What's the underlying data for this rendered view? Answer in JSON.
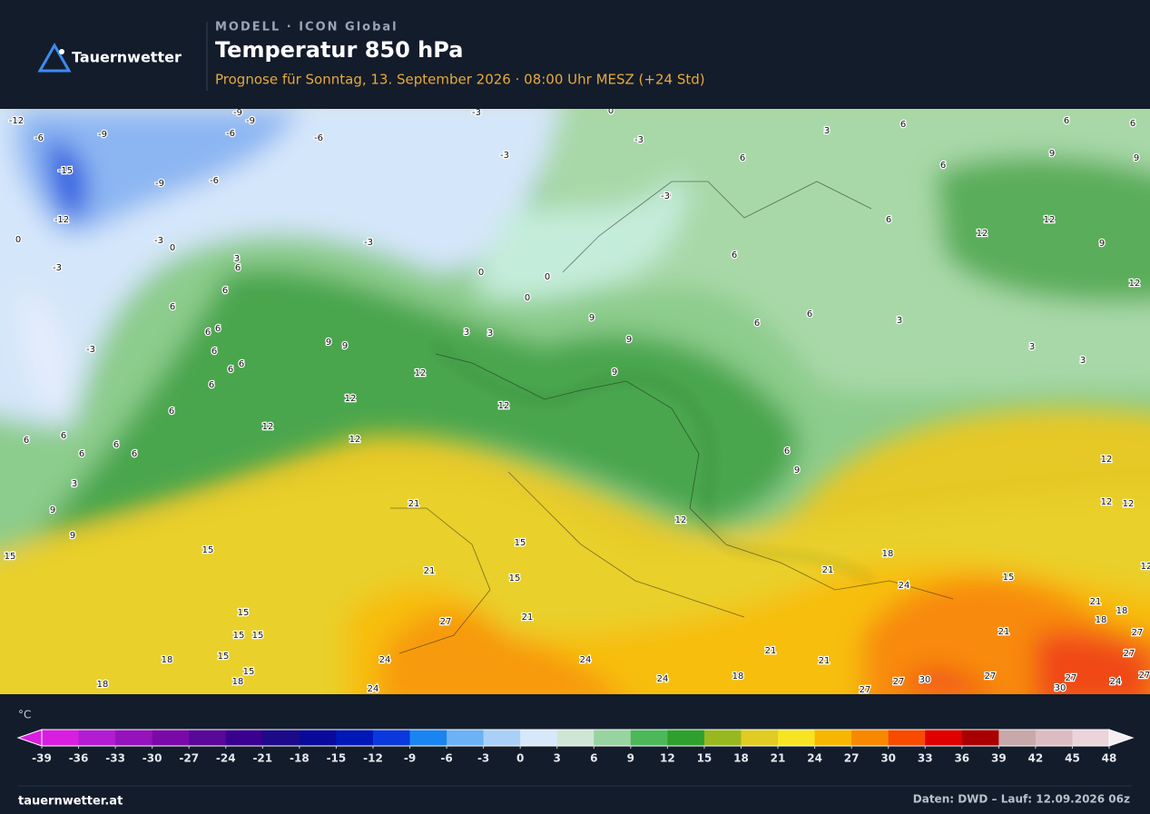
{
  "header": {
    "brand": "Tauernwetter",
    "model": "MODELL · ICON Global",
    "title": "Temperatur 850 hPa",
    "subtitle": "Prognose für Sonntag, 13. September 2026 · 08:00 Uhr MESZ  (+24 Std)"
  },
  "map": {
    "contour_labels": [
      -12,
      -6,
      -9,
      -15,
      -12,
      -9,
      -9,
      -9,
      -6,
      -6,
      -6,
      -3,
      -3,
      -3,
      -3,
      0,
      0,
      0,
      -3,
      3,
      6,
      6,
      6,
      9,
      9,
      6,
      6,
      0,
      6,
      12,
      12,
      9,
      12,
      6,
      6,
      6,
      3,
      3,
      3,
      9,
      9,
      9,
      0,
      0,
      0,
      3,
      6,
      6,
      6,
      6,
      6,
      6,
      6,
      6,
      6,
      9,
      9,
      12,
      12,
      12,
      12,
      12,
      6,
      6,
      6,
      6,
      6,
      6,
      3,
      9,
      9,
      15,
      15,
      21,
      21,
      15,
      15,
      21,
      27,
      24,
      24,
      24,
      24,
      15,
      15,
      15,
      15,
      15,
      18,
      18,
      18,
      12,
      6,
      9,
      12,
      12,
      12,
      18,
      21,
      24,
      15,
      21,
      18,
      18,
      27,
      27,
      21,
      27,
      27,
      30,
      24,
      27,
      30,
      27,
      27,
      21,
      21,
      18,
      3,
      3,
      12,
      -3,
      -3,
      -3
    ],
    "legend": {
      "unit": "°C",
      "ticks": [
        -39,
        -36,
        -33,
        -30,
        -27,
        -24,
        -21,
        -18,
        -15,
        -12,
        -9,
        -6,
        -3,
        0,
        3,
        6,
        9,
        12,
        15,
        18,
        21,
        24,
        27,
        30,
        33,
        36,
        39,
        42,
        45,
        48
      ],
      "colors": [
        "#d81ee0",
        "#b21cd2",
        "#9612ba",
        "#7a0aa8",
        "#5a0898",
        "#3a0090",
        "#1c0a88",
        "#0a0a9a",
        "#0018b8",
        "#0a38dc",
        "#1a84f0",
        "#6cb2f6",
        "#aad0f8",
        "#d8e8fb",
        "#cfe6d4",
        "#98d4a0",
        "#4cb85a",
        "#2ea02e",
        "#98b820",
        "#e0cc22",
        "#f7e422",
        "#f8b600",
        "#f88800",
        "#f84a00",
        "#e00000",
        "#a80000",
        "#c8a8a8",
        "#dcbcc2",
        "#ecd4da"
      ]
    }
  },
  "footer": {
    "site": "tauernwetter.at",
    "source": "Daten: DWD – Lauf: 12.09.2026 06z"
  }
}
